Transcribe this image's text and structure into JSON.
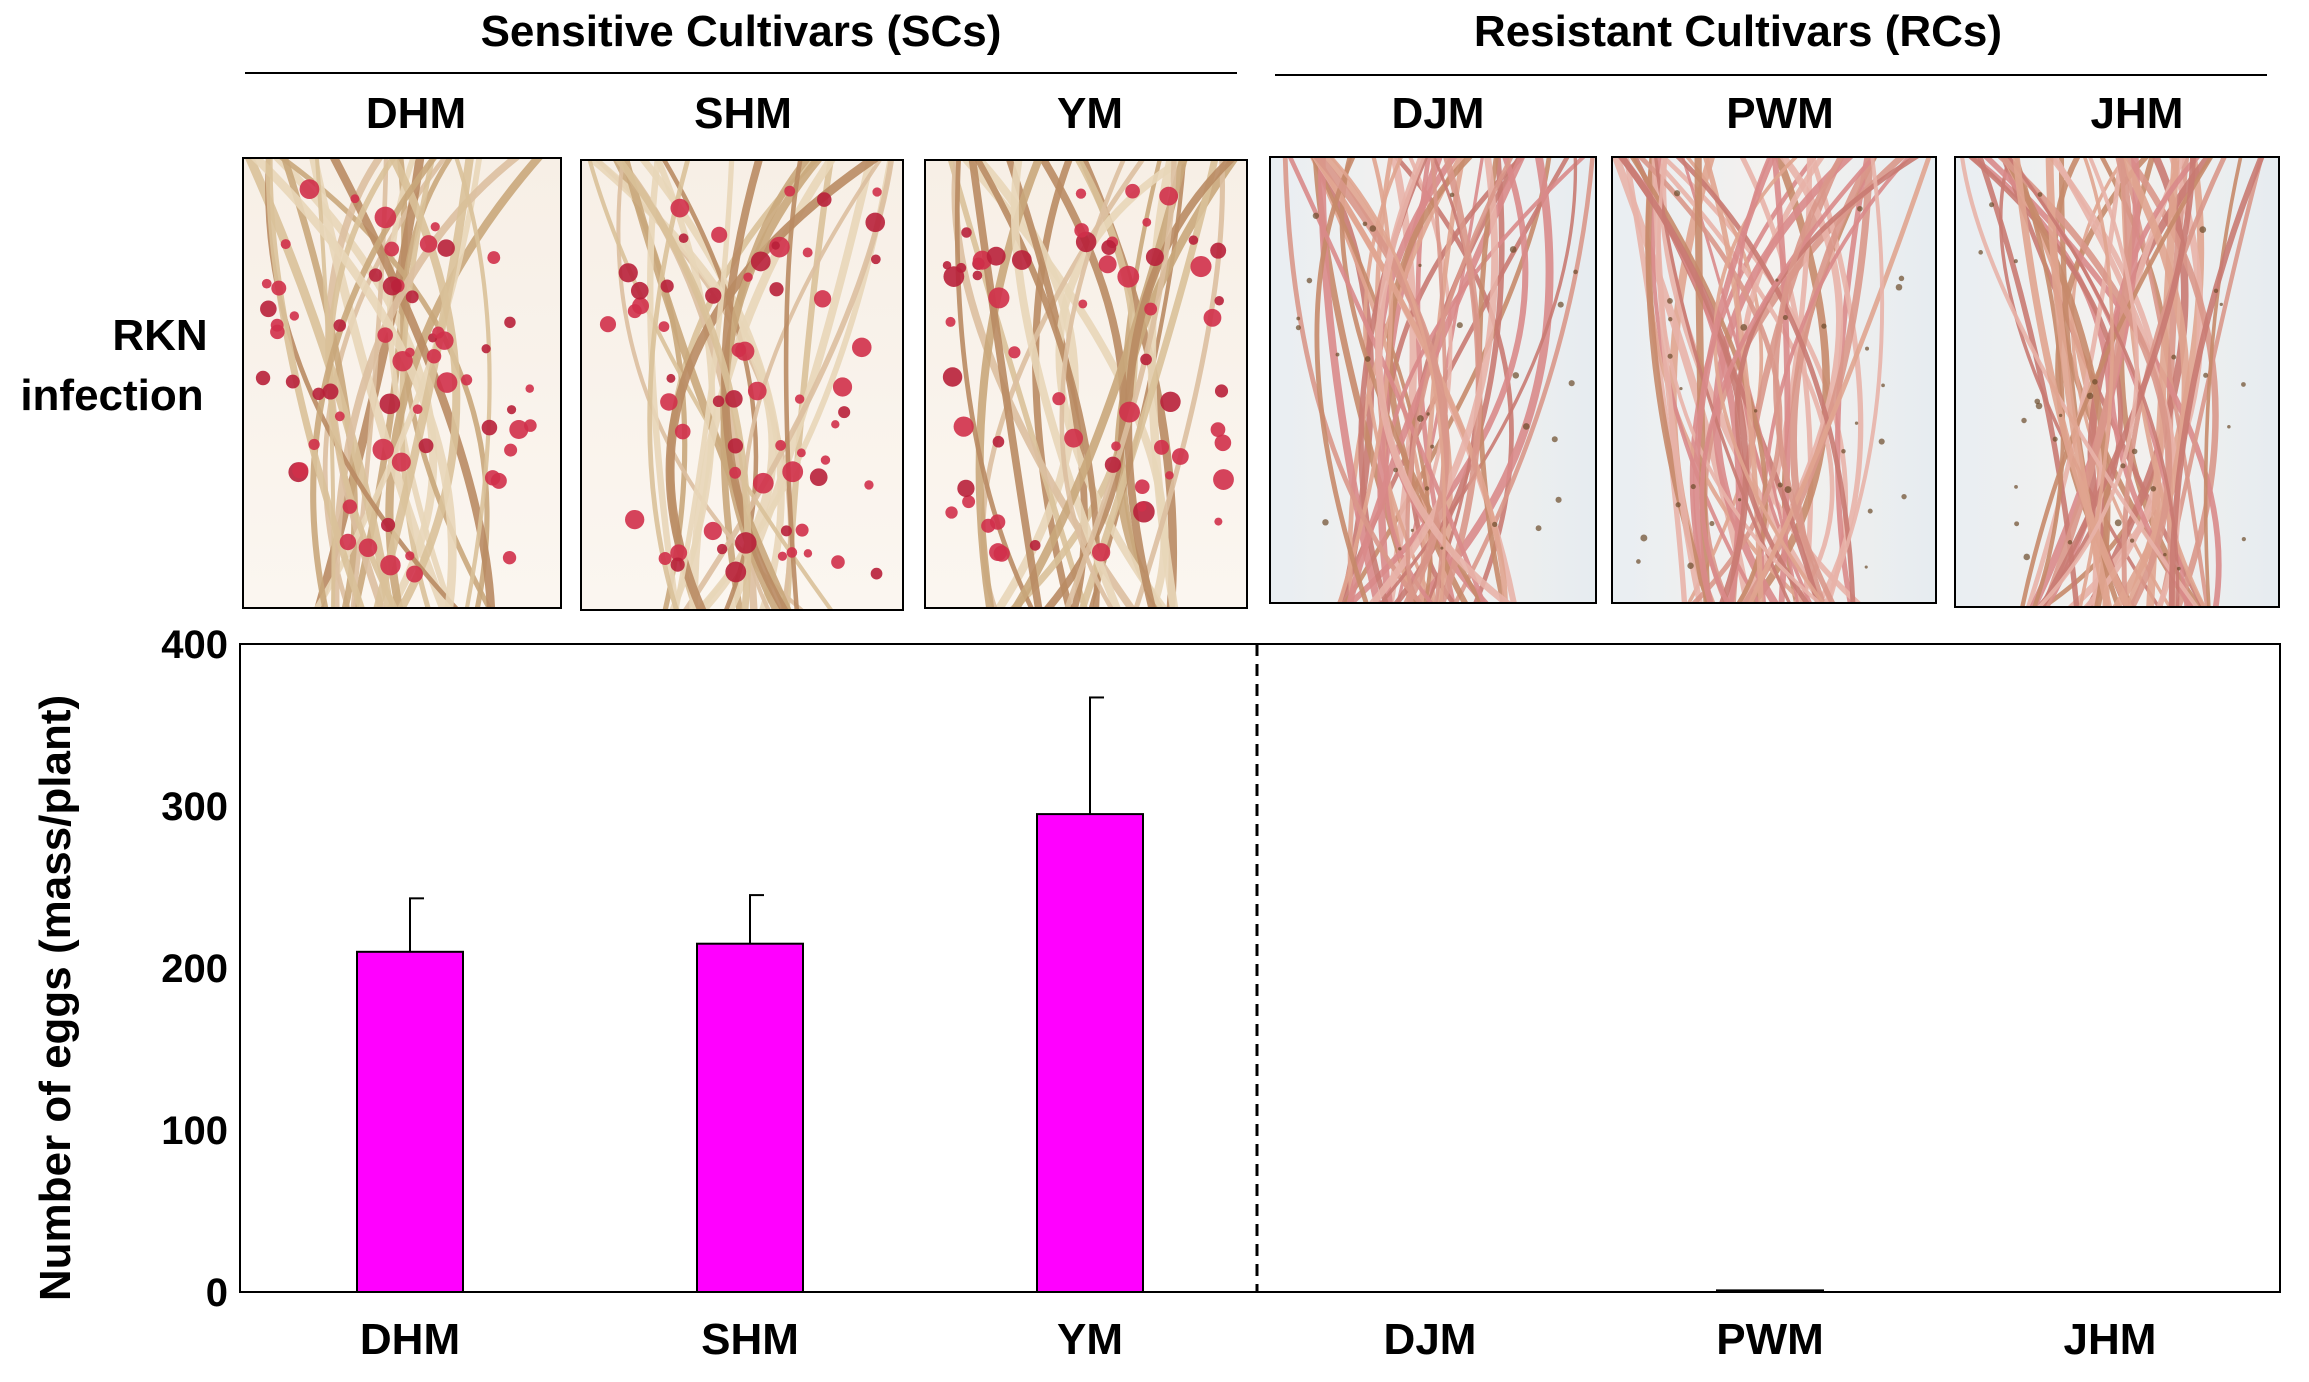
{
  "groups": [
    {
      "label": "Sensitive Cultivars (SCs)"
    },
    {
      "label": "Resistant Cultivars (RCs)"
    }
  ],
  "row_label": {
    "line1": "RKN",
    "line2": "infection"
  },
  "panels": [
    {
      "label": "DHM",
      "infection": "heavy"
    },
    {
      "label": "SHM",
      "infection": "heavy"
    },
    {
      "label": "YM",
      "infection": "heavy"
    },
    {
      "label": "DJM",
      "infection": "none"
    },
    {
      "label": "PWM",
      "infection": "none"
    },
    {
      "label": "JHM",
      "infection": "none"
    }
  ],
  "colors": {
    "bar": "#ff00ff",
    "axis": "#000000",
    "error_bar": "#000000"
  },
  "chart_data": {
    "type": "bar",
    "categories": [
      "DHM",
      "SHM",
      "YM",
      "DJM",
      "PWM",
      "JHM"
    ],
    "values": [
      210,
      215,
      295,
      0,
      1,
      0
    ],
    "errors": [
      33,
      30,
      72,
      0,
      0,
      0
    ],
    "ylabel": "Number of eggs (mass/plant)",
    "xlabel": "",
    "ylim": [
      0,
      400
    ],
    "yticks": [
      0,
      100,
      200,
      300,
      400
    ],
    "grid": false,
    "divider_after_index": 2
  }
}
